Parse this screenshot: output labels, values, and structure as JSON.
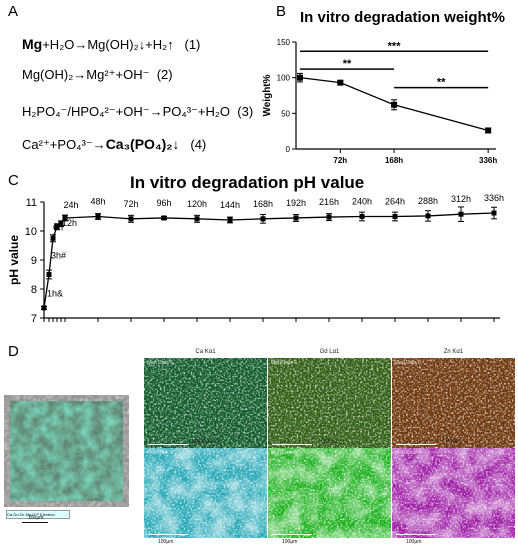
{
  "panels": {
    "a": "A",
    "b": "B",
    "c": "C",
    "d": "D"
  },
  "equations": [
    {
      "pre": "",
      "bold": "Mg",
      "post": "+H₂O→Mg(OH)₂↓+H₂↑",
      "num": "(1)"
    },
    {
      "pre": "Mg(OH)₂→Mg²⁺+OH⁻",
      "bold": "",
      "post": "",
      "num": "(2)"
    },
    {
      "pre": "H₂PO₄⁻/HPO₄²⁻+OH⁻→PO₄³⁻+H₂O",
      "bold": "",
      "post": "",
      "num": "(3)"
    },
    {
      "pre": "Ca²⁺+PO₄³⁻→",
      "bold": "Ca₃(PO₄)₂↓",
      "post": "",
      "num": "(4)"
    }
  ],
  "chart_data": [
    {
      "type": "line",
      "title": "In vitro degradation weight%",
      "xlabel": "",
      "ylabel": "Weight%",
      "x_positions_h": [
        0,
        72,
        168,
        336
      ],
      "x_tick_labels": [
        "72h",
        "168h",
        "336h"
      ],
      "y": [
        100,
        93,
        62,
        26
      ],
      "err": [
        6,
        3,
        7,
        3
      ],
      "ylim": [
        0,
        150
      ],
      "y_ticks": [
        0,
        50,
        100,
        150
      ],
      "significance": [
        {
          "from": 0,
          "to": 336,
          "label": "***"
        },
        {
          "from": 0,
          "to": 168,
          "label": "**"
        },
        {
          "from": 168,
          "to": 336,
          "label": "**"
        }
      ],
      "grid": false
    },
    {
      "type": "line",
      "title": "In vitro degradation pH value",
      "xlabel": "",
      "ylabel": "pH value",
      "ylim": [
        7,
        11
      ],
      "y_ticks": [
        7,
        8,
        9,
        10,
        11
      ],
      "points": [
        {
          "x": 0,
          "y": 7.35,
          "err": 0.05,
          "label": ""
        },
        {
          "x": 1,
          "y": 8.5,
          "err": 0.15,
          "label": "1h&"
        },
        {
          "x": 3,
          "y": 9.75,
          "err": 0.12,
          "label": "3h#"
        },
        {
          "x": 6,
          "y": 10.15,
          "err": 0.1,
          "label": "6h"
        },
        {
          "x": 12,
          "y": 10.25,
          "err": 0.1,
          "label": "12h"
        },
        {
          "x": 24,
          "y": 10.45,
          "err": 0.1,
          "label": "24h"
        },
        {
          "x": 48,
          "y": 10.5,
          "err": 0.1,
          "label": "48h"
        },
        {
          "x": 72,
          "y": 10.42,
          "err": 0.12,
          "label": "72h"
        },
        {
          "x": 96,
          "y": 10.45,
          "err": 0.05,
          "label": "96h"
        },
        {
          "x": 120,
          "y": 10.42,
          "err": 0.12,
          "label": "120h"
        },
        {
          "x": 144,
          "y": 10.38,
          "err": 0.1,
          "label": "144h"
        },
        {
          "x": 168,
          "y": 10.42,
          "err": 0.15,
          "label": "168h"
        },
        {
          "x": 192,
          "y": 10.45,
          "err": 0.12,
          "label": "192h"
        },
        {
          "x": 216,
          "y": 10.48,
          "err": 0.12,
          "label": "216h"
        },
        {
          "x": 240,
          "y": 10.5,
          "err": 0.15,
          "label": "240h"
        },
        {
          "x": 264,
          "y": 10.5,
          "err": 0.15,
          "label": "264h"
        },
        {
          "x": 288,
          "y": 10.52,
          "err": 0.18,
          "label": "288h"
        },
        {
          "x": 312,
          "y": 10.58,
          "err": 0.25,
          "label": "312h"
        },
        {
          "x": 336,
          "y": 10.62,
          "err": 0.2,
          "label": "336h"
        }
      ],
      "grid": false
    }
  ],
  "maps": [
    {
      "label": "Ca Kα1",
      "tag": "Map Data 6",
      "scale": "100μm",
      "color": "#1f9a4a",
      "dark": "#0b3a1c",
      "light": "#41d873"
    },
    {
      "label": "Gd Lα1",
      "tag": "Map Data 6",
      "scale": "100μm",
      "color": "#5aa028",
      "dark": "#1d3b0a",
      "light": "#8fe04e"
    },
    {
      "label": "Zn Kα1",
      "tag": "Map Data 6",
      "scale": "100μm",
      "color": "#c86a1e",
      "dark": "#3e1c06",
      "light": "#f0a050"
    },
    {
      "label": "Mg Kα1_2",
      "tag": "Map Data 6",
      "scale": "100μm",
      "color": "#2cb8c8",
      "dark": "#0e5560",
      "light": "#8ae8f0"
    },
    {
      "label": "O Kα1",
      "tag": "Map Data 6",
      "scale": "100μm",
      "color": "#1ec21e",
      "dark": "#0a5a0a",
      "light": "#7aff6a"
    },
    {
      "label": "P Kα1",
      "tag": "Map Data 6",
      "scale": "100μm",
      "color": "#b020b8",
      "dark": "#3a0840",
      "light": "#e060e8"
    }
  ],
  "sem": {
    "legend": "Ca Gd Zn Mg O P Electron",
    "scale": "100μm"
  }
}
